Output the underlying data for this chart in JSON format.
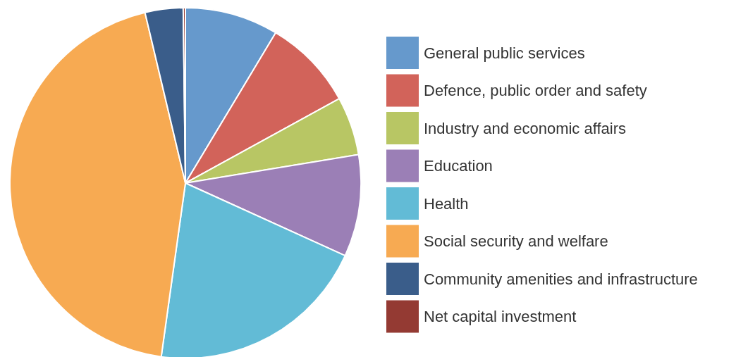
{
  "chart_data": {
    "type": "pie",
    "categories": [
      "General public services",
      "Defence, public order and safety",
      "Industry and economic affairs",
      "Education",
      "Health",
      "Social security and welfare",
      "Community amenities and infrastructure",
      "Net capital investment"
    ],
    "values": [
      8.6,
      8.4,
      5.4,
      9.4,
      20.4,
      44.1,
      3.5,
      0.2
    ],
    "colors": [
      "#6699cc",
      "#d2635a",
      "#b8c664",
      "#9b7fb6",
      "#62bbd6",
      "#f7aa52",
      "#3a5d8a",
      "#943a33"
    ],
    "legend": "right"
  }
}
